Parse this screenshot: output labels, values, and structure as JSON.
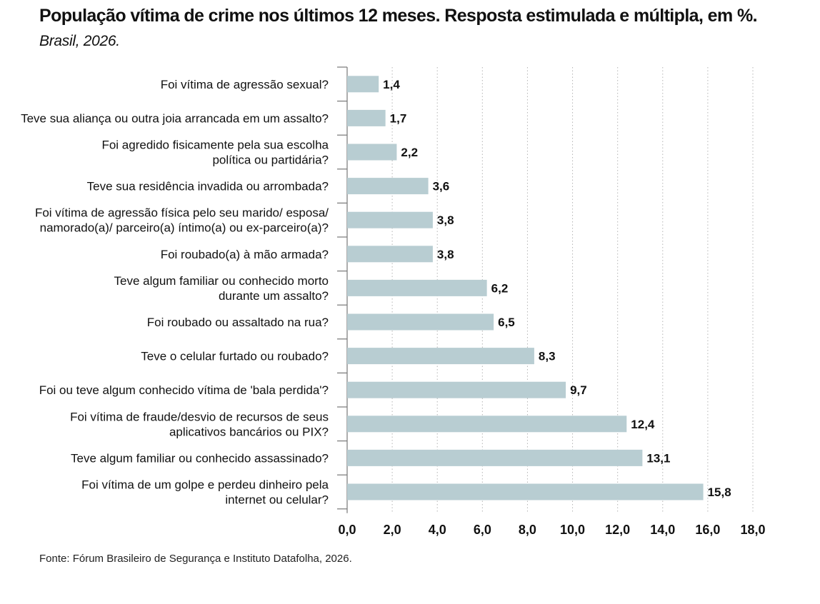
{
  "header": {
    "title": "População vítima de crime nos últimos 12 meses. Resposta estimulada e múltipla, em %.",
    "subtitle": "Brasil, 2026."
  },
  "footer": {
    "source": "Fonte: Fórum Brasileiro de Segurança e Instituto Datafolha, 2026."
  },
  "chart_data": {
    "type": "bar",
    "orientation": "horizontal",
    "title": "População vítima de crime nos últimos 12 meses. Resposta estimulada e múltipla, em %.",
    "subtitle": "Brasil, 2026.",
    "categories": [
      [
        "Foi vítima de agressão sexual?"
      ],
      [
        "Teve sua aliança ou outra joia arrancada em um assalto?"
      ],
      [
        "Foi agredido fisicamente pela sua escolha",
        "política ou partidária?"
      ],
      [
        "Teve sua residência invadida ou arrombada?"
      ],
      [
        "Foi vítima de agressão física pelo seu marido/ esposa/",
        "namorado(a)/ parceiro(a) íntimo(a) ou ex-parceiro(a)?"
      ],
      [
        "Foi roubado(a) à mão armada?"
      ],
      [
        "Teve algum familiar ou conhecido morto",
        "durante um assalto?"
      ],
      [
        "Foi roubado ou assaltado na rua?"
      ],
      [
        "Teve o celular furtado ou roubado?"
      ],
      [
        "Foi ou teve algum conhecido vítima de 'bala perdida'?"
      ],
      [
        "Foi vítima de fraude/desvio de recursos de seus",
        "aplicativos bancários ou PIX?"
      ],
      [
        "Teve algum familiar ou conhecido assassinado?"
      ],
      [
        "Foi vítima de um golpe e perdeu dinheiro pela",
        "internet ou celular?"
      ]
    ],
    "values": [
      1.4,
      1.7,
      2.2,
      3.6,
      3.8,
      3.8,
      6.2,
      6.5,
      8.3,
      9.7,
      12.4,
      13.1,
      15.8
    ],
    "value_labels": [
      "1,4",
      "1,7",
      "2,2",
      "3,6",
      "3,8",
      "3,8",
      "6,2",
      "6,5",
      "8,3",
      "9,7",
      "12,4",
      "13,1",
      "15,8"
    ],
    "xlim": [
      0,
      18
    ],
    "xticks": [
      0,
      2,
      4,
      6,
      8,
      10,
      12,
      14,
      16,
      18
    ],
    "xtick_labels": [
      "0,0",
      "2,0",
      "4,0",
      "6,0",
      "8,0",
      "10,0",
      "12,0",
      "14,0",
      "16,0",
      "18,0"
    ],
    "xlabel": "",
    "ylabel": "",
    "grid": "vertical dotted",
    "bar_color": "#b8cdd2",
    "source": "Fonte: Fórum Brasileiro de Segurança e Instituto Datafolha, 2026."
  }
}
